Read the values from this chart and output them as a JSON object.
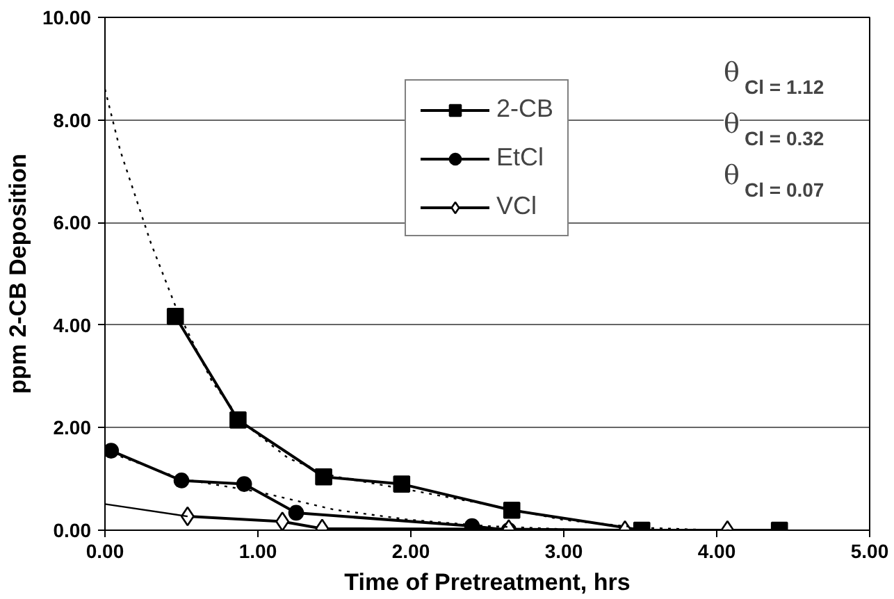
{
  "chart_data": {
    "type": "line",
    "xlabel": "Time of Pretreatment, hrs",
    "ylabel": "ppm 2-CB Deposition",
    "xlim": [
      0,
      5
    ],
    "ylim": [
      0,
      10
    ],
    "xticks": [
      {
        "value": 0,
        "label": "0.00"
      },
      {
        "value": 1,
        "label": "1.00"
      },
      {
        "value": 2,
        "label": "2.00"
      },
      {
        "value": 3,
        "label": "3.00"
      },
      {
        "value": 4,
        "label": "4.00"
      },
      {
        "value": 5,
        "label": "5.00"
      }
    ],
    "yticks": [
      {
        "value": 0,
        "label": "0.00"
      },
      {
        "value": 2,
        "label": "2.00"
      },
      {
        "value": 4,
        "label": "4.00"
      },
      {
        "value": 6,
        "label": "6.00"
      },
      {
        "value": 8,
        "label": "8.00"
      },
      {
        "value": 10,
        "label": "10.00"
      }
    ],
    "grid": "y",
    "legend": "top",
    "series": [
      {
        "name": "2-CB",
        "color": "#000000",
        "marker": "square",
        "x": [
          0.46,
          0.87,
          1.43,
          1.94,
          2.66,
          3.51,
          4.41
        ],
        "values": [
          4.17,
          2.15,
          1.04,
          0.9,
          0.39,
          0.0,
          0.0
        ]
      },
      {
        "name": "EtCl",
        "color": "#000000",
        "marker": "circle",
        "x": [
          0.04,
          0.5,
          0.91,
          1.25,
          2.4,
          2.64
        ],
        "values": [
          1.55,
          0.97,
          0.9,
          0.34,
          0.08,
          0.0
        ]
      },
      {
        "name": "VCl",
        "color": "#000000",
        "marker": "diamond",
        "x": [
          0.54,
          1.16,
          1.42,
          2.64,
          3.4,
          4.07
        ],
        "values": [
          0.27,
          0.17,
          0.03,
          0.02,
          0.0,
          0.0
        ]
      },
      {
        "type": "line",
        "color": "#000000",
        "marker": "none",
        "line_style": "dotted",
        "x": [
          0.0,
          0.1,
          0.2,
          0.3,
          0.47,
          0.7,
          0.9,
          1.2,
          1.5,
          2.0,
          2.5,
          3.0,
          3.5,
          4.0,
          4.4
        ],
        "values": [
          8.6,
          7.4,
          6.5,
          5.6,
          4.3,
          2.9,
          2.1,
          1.4,
          1.05,
          0.78,
          0.5,
          0.2,
          0.05,
          0.0,
          0.0
        ]
      },
      {
        "type": "line",
        "color": "#000000",
        "marker": "none",
        "line_style": "dotted",
        "x": [
          0.0,
          0.5,
          1.0,
          1.5,
          2.0,
          2.5,
          3.0
        ],
        "values": [
          1.55,
          1.0,
          0.75,
          0.4,
          0.2,
          0.08,
          0.02
        ]
      },
      {
        "type": "line",
        "color": "#000000",
        "marker": "none",
        "line_style": "solid",
        "x": [
          0.0,
          0.54
        ],
        "values": [
          0.51,
          0.27
        ]
      }
    ],
    "annotations": [
      "θ$_{Cl = 1.12}$",
      "θ$_{Cl = 0.32}$",
      "θ$_{Cl = 0.07}$"
    ]
  }
}
